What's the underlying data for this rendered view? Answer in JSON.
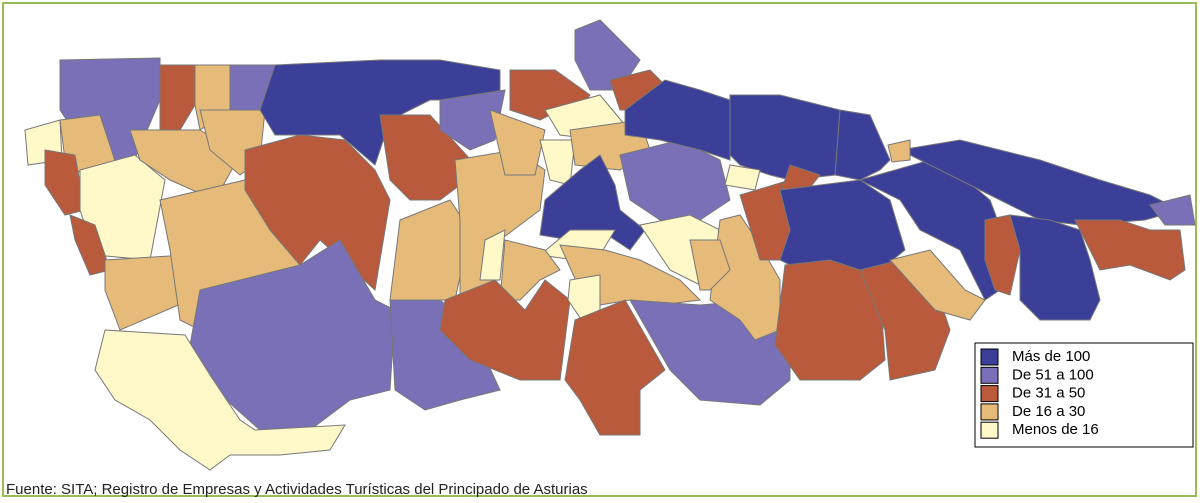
{
  "map": {
    "legend": {
      "items": [
        {
          "label": "Más de 100",
          "color": "#3b3f98"
        },
        {
          "label": "De 51 a 100",
          "color": "#7a70b8"
        },
        {
          "label": "De 31 a 50",
          "color": "#b95a3c"
        },
        {
          "label": "De 16 a 30",
          "color": "#e6bb7a"
        },
        {
          "label": "Menos de 16",
          "color": "#fff8c8"
        }
      ]
    }
  },
  "source": "Fuente: SITA; Registro de Empresas y Actividades Turísticas del Principado de Asturias"
}
